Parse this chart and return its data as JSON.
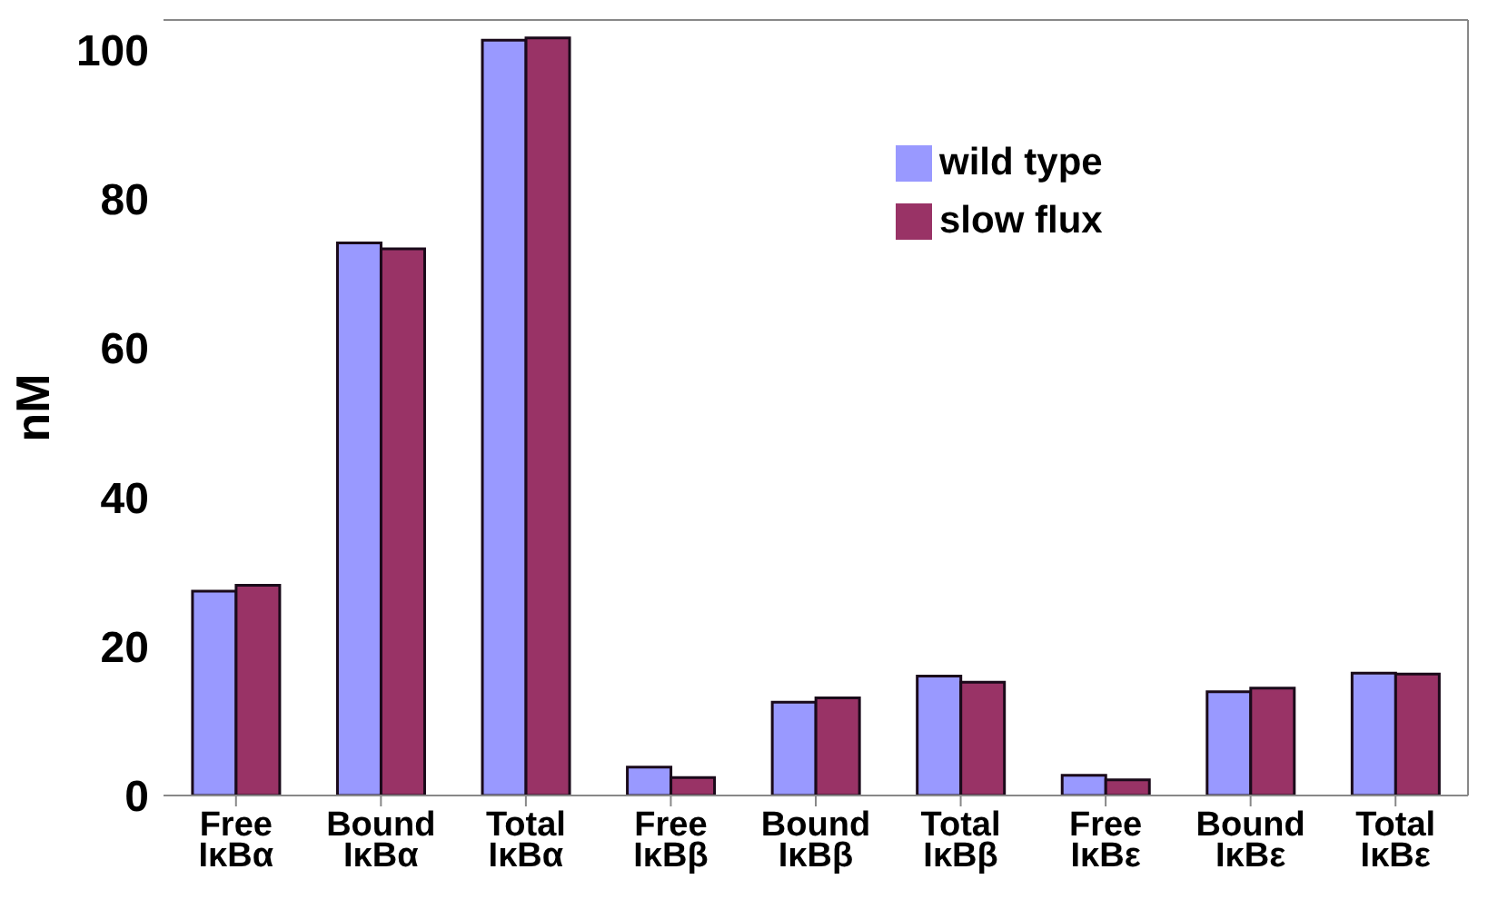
{
  "chart_data": {
    "type": "bar",
    "ylabel": "nM",
    "categories": [
      "Free IκBα",
      "Bound IκBα",
      "Total IκBα",
      "Free IκBβ",
      "Bound IκBβ",
      "Total IκBβ",
      "Free IκBε",
      "Bound IκBε",
      "Total IκBε"
    ],
    "series": [
      {
        "name": "wild type",
        "color": "#9999ff",
        "values": [
          27.4,
          74.1,
          101.3,
          3.8,
          12.5,
          16.0,
          2.7,
          13.9,
          16.4
        ]
      },
      {
        "name": "slow flux",
        "color": "#993366",
        "values": [
          28.2,
          73.3,
          101.6,
          2.4,
          13.1,
          15.2,
          2.1,
          14.4,
          16.3
        ]
      }
    ],
    "ylim": [
      0,
      104
    ],
    "yticks": [
      0,
      20,
      40,
      60,
      80,
      100
    ],
    "legend": "top right"
  }
}
